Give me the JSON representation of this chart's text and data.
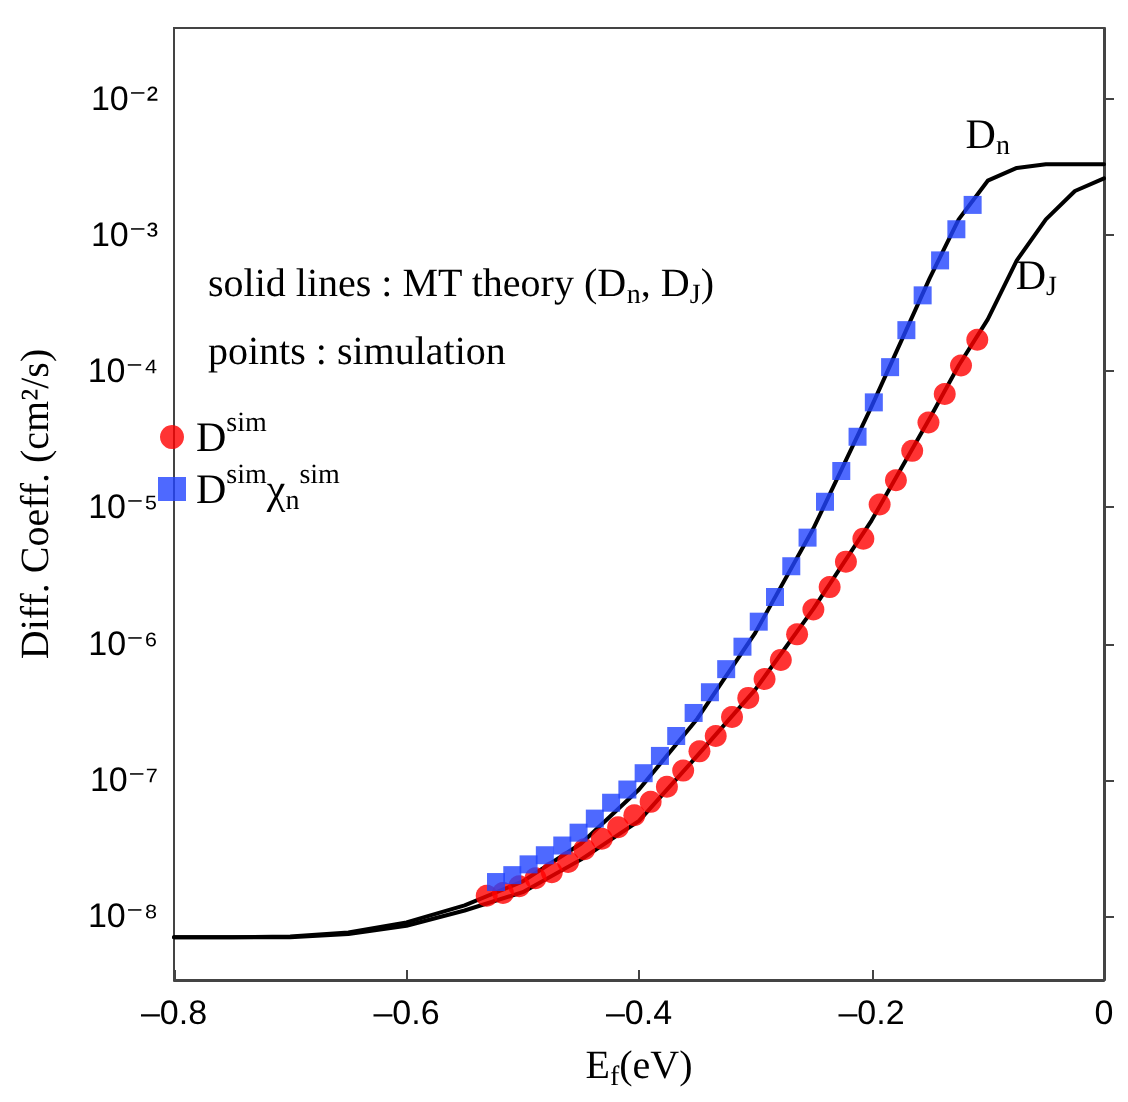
{
  "chart_data": {
    "type": "line",
    "xlabel": "E$_{f}$(eV)",
    "ylabel": "Diff. Coeff. (cm²/s)",
    "annotations": [
      "solid lines : MT theory (D$_{n}$, D$_{J}$)",
      "points : simulation"
    ],
    "xlim": [
      -0.8,
      0
    ],
    "xticks": [
      {
        "value": -0.8,
        "label": "–0.8"
      },
      {
        "value": -0.6,
        "label": "–0.6"
      },
      {
        "value": -0.4,
        "label": "–0.4"
      },
      {
        "value": -0.2,
        "label": "–0.2"
      },
      0
    ],
    "ylim": [
      3.4e-09,
      0.033
    ],
    "yticks": [
      {
        "value": 1e-08,
        "label": "10⁻⁸"
      },
      {
        "value": 1e-07,
        "label": "10⁻⁷"
      },
      {
        "value": 1e-06,
        "label": "10⁻⁶"
      },
      {
        "value": 1e-05,
        "label": "10⁻⁵"
      },
      {
        "value": 0.0001,
        "label": "10⁻⁴"
      },
      {
        "value": 0.001,
        "label": "10⁻³"
      },
      {
        "value": 0.01,
        "label": "10⁻²"
      }
    ],
    "log": "y",
    "grid": false,
    "legend": "left",
    "line_style": "solid",
    "series": [
      {
        "name": "D$_{n}$",
        "marker": "none",
        "color": "#000000",
        "x": [
          -0.8,
          -0.75,
          -0.7,
          -0.65,
          -0.6,
          -0.55,
          -0.5,
          -0.45,
          -0.4,
          -0.35,
          -0.3,
          -0.25,
          -0.2,
          -0.15,
          -0.125,
          -0.1,
          -0.075,
          -0.05,
          -0.025,
          0
        ],
        "values": [
          7e-09,
          7e-09,
          7.1e-09,
          7.6e-09,
          9e-09,
          1.2e-08,
          1.8e-08,
          3.4e-08,
          8.5e-08,
          2.8e-07,
          1.2e-06,
          7e-06,
          5.5e-05,
          0.00048,
          0.0013,
          0.0025,
          0.0031,
          0.0033,
          0.0033,
          0.0033
        ]
      },
      {
        "name": "D$_{J}$",
        "marker": "none",
        "color": "#000000",
        "x": [
          -0.8,
          -0.75,
          -0.7,
          -0.65,
          -0.6,
          -0.55,
          -0.5,
          -0.45,
          -0.4,
          -0.35,
          -0.3,
          -0.25,
          -0.2,
          -0.15,
          -0.125,
          -0.1,
          -0.075,
          -0.05,
          -0.025,
          0
        ],
        "values": [
          7e-09,
          7e-09,
          7e-09,
          7.4e-09,
          8.5e-09,
          1.1e-08,
          1.5e-08,
          2.6e-08,
          5e-08,
          1.5e-07,
          4.6e-07,
          1.8e-06,
          8e-06,
          4.5e-05,
          0.00011,
          0.00024,
          0.00065,
          0.0013,
          0.0021,
          0.0026
        ]
      },
      {
        "name": "D$^{sim}$",
        "type": "scatter",
        "marker": "circle",
        "color": "#ff0000",
        "x": [
          -0.531,
          -0.517,
          -0.503,
          -0.489,
          -0.475,
          -0.461,
          -0.447,
          -0.432,
          -0.418,
          -0.404,
          -0.39,
          -0.376,
          -0.362,
          -0.348,
          -0.334,
          -0.32,
          -0.306,
          -0.292,
          -0.278,
          -0.264,
          -0.25,
          -0.236,
          -0.222,
          -0.207,
          -0.193,
          -0.179,
          -0.165,
          -0.151,
          -0.137,
          -0.123,
          -0.109
        ],
        "values": [
          1.41e-08,
          1.48e-08,
          1.66e-08,
          1.9e-08,
          2.1e-08,
          2.5e-08,
          3.1e-08,
          3.7e-08,
          4.5e-08,
          5.5e-08,
          6.9e-08,
          8.9e-08,
          1.17e-07,
          1.62e-07,
          2.1e-07,
          2.9e-07,
          4e-07,
          5.5e-07,
          7.6e-07,
          1.17e-06,
          1.78e-06,
          2.6e-06,
          4e-06,
          5.9e-06,
          1.05e-05,
          1.58e-05,
          2.6e-05,
          4.2e-05,
          6.8e-05,
          0.00011,
          0.00017
        ]
      },
      {
        "name": "D$^{sim}$χ$_{n}$$^{sim}$",
        "type": "scatter",
        "marker": "square",
        "color": "#2244ff",
        "x": [
          -0.523,
          -0.509,
          -0.495,
          -0.481,
          -0.466,
          -0.452,
          -0.438,
          -0.424,
          -0.41,
          -0.396,
          -0.382,
          -0.368,
          -0.353,
          -0.339,
          -0.325,
          -0.311,
          -0.297,
          -0.283,
          -0.269,
          -0.255,
          -0.24,
          -0.226,
          -0.212,
          -0.198,
          -0.184,
          -0.17,
          -0.156,
          -0.141,
          -0.127,
          -0.113
        ],
        "values": [
          1.78e-08,
          2e-08,
          2.4e-08,
          2.8e-08,
          3.3e-08,
          4.1e-08,
          5.2e-08,
          6.8e-08,
          8.5e-08,
          1.12e-07,
          1.5e-07,
          2.1e-07,
          3.1e-07,
          4.4e-07,
          6.5e-07,
          9.5e-07,
          1.45e-06,
          2.2e-06,
          3.7e-06,
          6e-06,
          1.1e-05,
          1.85e-05,
          3.3e-05,
          5.9e-05,
          0.000107,
          0.0002,
          0.00036,
          0.00065,
          0.0011,
          0.00166
        ]
      }
    ]
  }
}
